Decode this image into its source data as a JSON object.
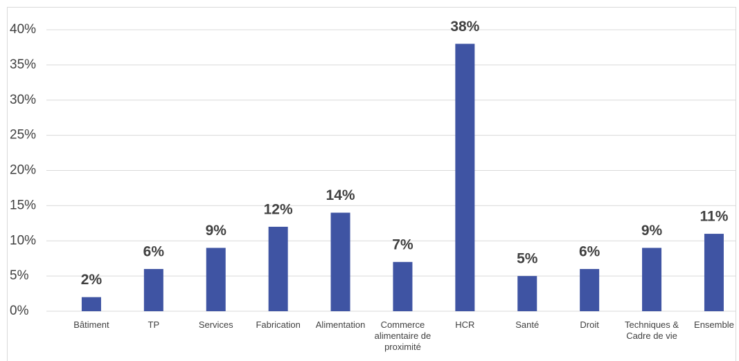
{
  "chart_data": {
    "type": "bar",
    "categories": [
      "Bâtiment",
      "TP",
      "Services",
      "Fabrication",
      "Alimentation",
      "Commerce alimentaire de proximité",
      "HCR",
      "Santé",
      "Droit",
      "Techniques & Cadre de vie",
      "Ensemble"
    ],
    "values": [
      2,
      6,
      9,
      12,
      14,
      7,
      38,
      5,
      6,
      9,
      11
    ],
    "value_labels": [
      "2%",
      "6%",
      "9%",
      "12%",
      "14%",
      "7%",
      "38%",
      "5%",
      "6%",
      "9%",
      "11%"
    ],
    "color": "#3f54a3",
    "ylim": [
      0,
      40
    ],
    "yticks": [
      {
        "value": 0,
        "label": "0%"
      },
      {
        "value": 5,
        "label": "5%"
      },
      {
        "value": 10,
        "label": "10%"
      },
      {
        "value": 15,
        "label": "15%"
      },
      {
        "value": 20,
        "label": "20%"
      },
      {
        "value": 25,
        "label": "25%"
      },
      {
        "value": 30,
        "label": "30%"
      },
      {
        "value": 35,
        "label": "35%"
      },
      {
        "value": 40,
        "label": "40%"
      }
    ],
    "grid": true
  }
}
